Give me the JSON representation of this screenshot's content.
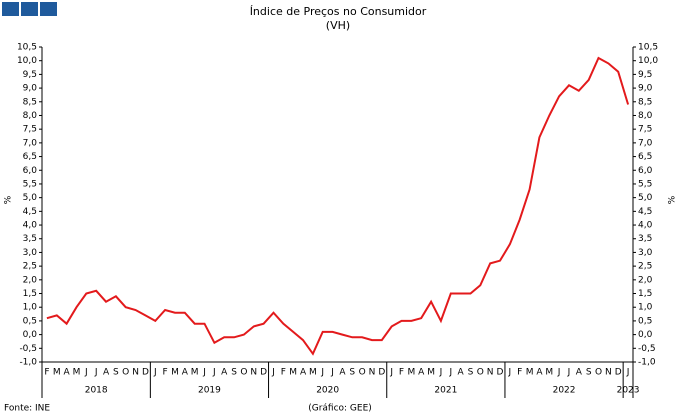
{
  "chart_data": {
    "type": "line",
    "title": "Índice de Preços no Consumidor",
    "subtitle": "(VH)",
    "ylabel": "%",
    "y2label": "%",
    "categories": [
      "F",
      "M",
      "A",
      "M",
      "J",
      "J",
      "A",
      "S",
      "O",
      "N",
      "D",
      "J",
      "F",
      "M",
      "A",
      "M",
      "J",
      "J",
      "A",
      "S",
      "O",
      "N",
      "D",
      "J",
      "F",
      "M",
      "A",
      "M",
      "J",
      "J",
      "A",
      "S",
      "O",
      "N",
      "D",
      "J",
      "F",
      "M",
      "A",
      "M",
      "J",
      "J",
      "A",
      "S",
      "O",
      "N",
      "D",
      "J",
      "F",
      "M",
      "A",
      "M",
      "J",
      "J",
      "A",
      "S",
      "O",
      "N",
      "D",
      "J"
    ],
    "years": [
      "2018",
      "2019",
      "2020",
      "2021",
      "2022",
      "2023"
    ],
    "series": [
      {
        "name": "VH",
        "color": "#e31a1c",
        "values": [
          0.6,
          0.7,
          0.4,
          1.0,
          1.5,
          1.6,
          1.2,
          1.4,
          1.0,
          0.9,
          0.7,
          0.5,
          0.9,
          0.8,
          0.8,
          0.4,
          0.4,
          -0.3,
          -0.1,
          -0.1,
          0.0,
          0.3,
          0.4,
          0.8,
          0.4,
          0.1,
          -0.2,
          -0.7,
          0.1,
          0.1,
          0.0,
          -0.1,
          -0.1,
          -0.2,
          -0.2,
          0.3,
          0.5,
          0.5,
          0.6,
          1.2,
          0.5,
          1.5,
          1.5,
          1.5,
          1.8,
          2.6,
          2.7,
          3.3,
          4.2,
          5.3,
          7.2,
          8.0,
          8.7,
          9.1,
          8.9,
          9.3,
          10.1,
          9.9,
          9.6,
          8.4
        ]
      }
    ],
    "ylim": [
      -1.0,
      10.5
    ],
    "yticks": [
      {
        "value": -1,
        "label": "-1,0"
      },
      {
        "value": -0.5,
        "label": "-0,5"
      },
      {
        "value": 0,
        "label": "0,0"
      },
      {
        "value": 0.5,
        "label": "0,5"
      },
      {
        "value": 1,
        "label": "1,0"
      },
      {
        "value": 1.5,
        "label": "1,5"
      },
      {
        "value": 2,
        "label": "2,0"
      },
      {
        "value": 2.5,
        "label": "2,5"
      },
      {
        "value": 3,
        "label": "3,0"
      },
      {
        "value": 3.5,
        "label": "3,5"
      },
      {
        "value": 4,
        "label": "4,0"
      },
      {
        "value": 4.5,
        "label": "4,5"
      },
      {
        "value": 5,
        "label": "5,0"
      },
      {
        "value": 5.5,
        "label": "5,5"
      },
      {
        "value": 6,
        "label": "6,0"
      },
      {
        "value": 6.5,
        "label": "6,5"
      },
      {
        "value": 7,
        "label": "7,0"
      },
      {
        "value": 7.5,
        "label": "7,5"
      },
      {
        "value": 8,
        "label": "8,0"
      },
      {
        "value": 8.5,
        "label": "8,5"
      },
      {
        "value": 9,
        "label": "9,0"
      },
      {
        "value": 9.5,
        "label": "9,5"
      },
      {
        "value": 10,
        "label": "10,0"
      },
      {
        "value": 10.5,
        "label": "10,5"
      }
    ],
    "y2lim": [
      -1.0,
      10.5
    ],
    "y2ticks": [
      {
        "value": -1,
        "label": "-1,0"
      },
      {
        "value": -0.5,
        "label": "-0,5"
      },
      {
        "value": 0,
        "label": "0,0"
      },
      {
        "value": 0.5,
        "label": "0,5"
      },
      {
        "value": 1,
        "label": "1,0"
      },
      {
        "value": 1.5,
        "label": "1,5"
      },
      {
        "value": 2,
        "label": "2,0"
      },
      {
        "value": 2.5,
        "label": "2,5"
      },
      {
        "value": 3,
        "label": "3,0"
      },
      {
        "value": 3.5,
        "label": "3,5"
      },
      {
        "value": 4,
        "label": "4,0"
      },
      {
        "value": 4.5,
        "label": "4,5"
      },
      {
        "value": 5,
        "label": "5,0"
      },
      {
        "value": 5.5,
        "label": "5,5"
      },
      {
        "value": 6,
        "label": "6,0"
      },
      {
        "value": 6.5,
        "label": "6,5"
      },
      {
        "value": 7,
        "label": "7,0"
      },
      {
        "value": 7.5,
        "label": "7,5"
      },
      {
        "value": 8,
        "label": "8,0"
      },
      {
        "value": 8.5,
        "label": "8,5"
      },
      {
        "value": 9,
        "label": "9,0"
      },
      {
        "value": 9.5,
        "label": "9,5"
      },
      {
        "value": 10,
        "label": "10,0"
      },
      {
        "value": 10.5,
        "label": "10,5"
      }
    ],
    "source": "Fonte: INE",
    "credit": "(Gráfico: GEE)"
  }
}
